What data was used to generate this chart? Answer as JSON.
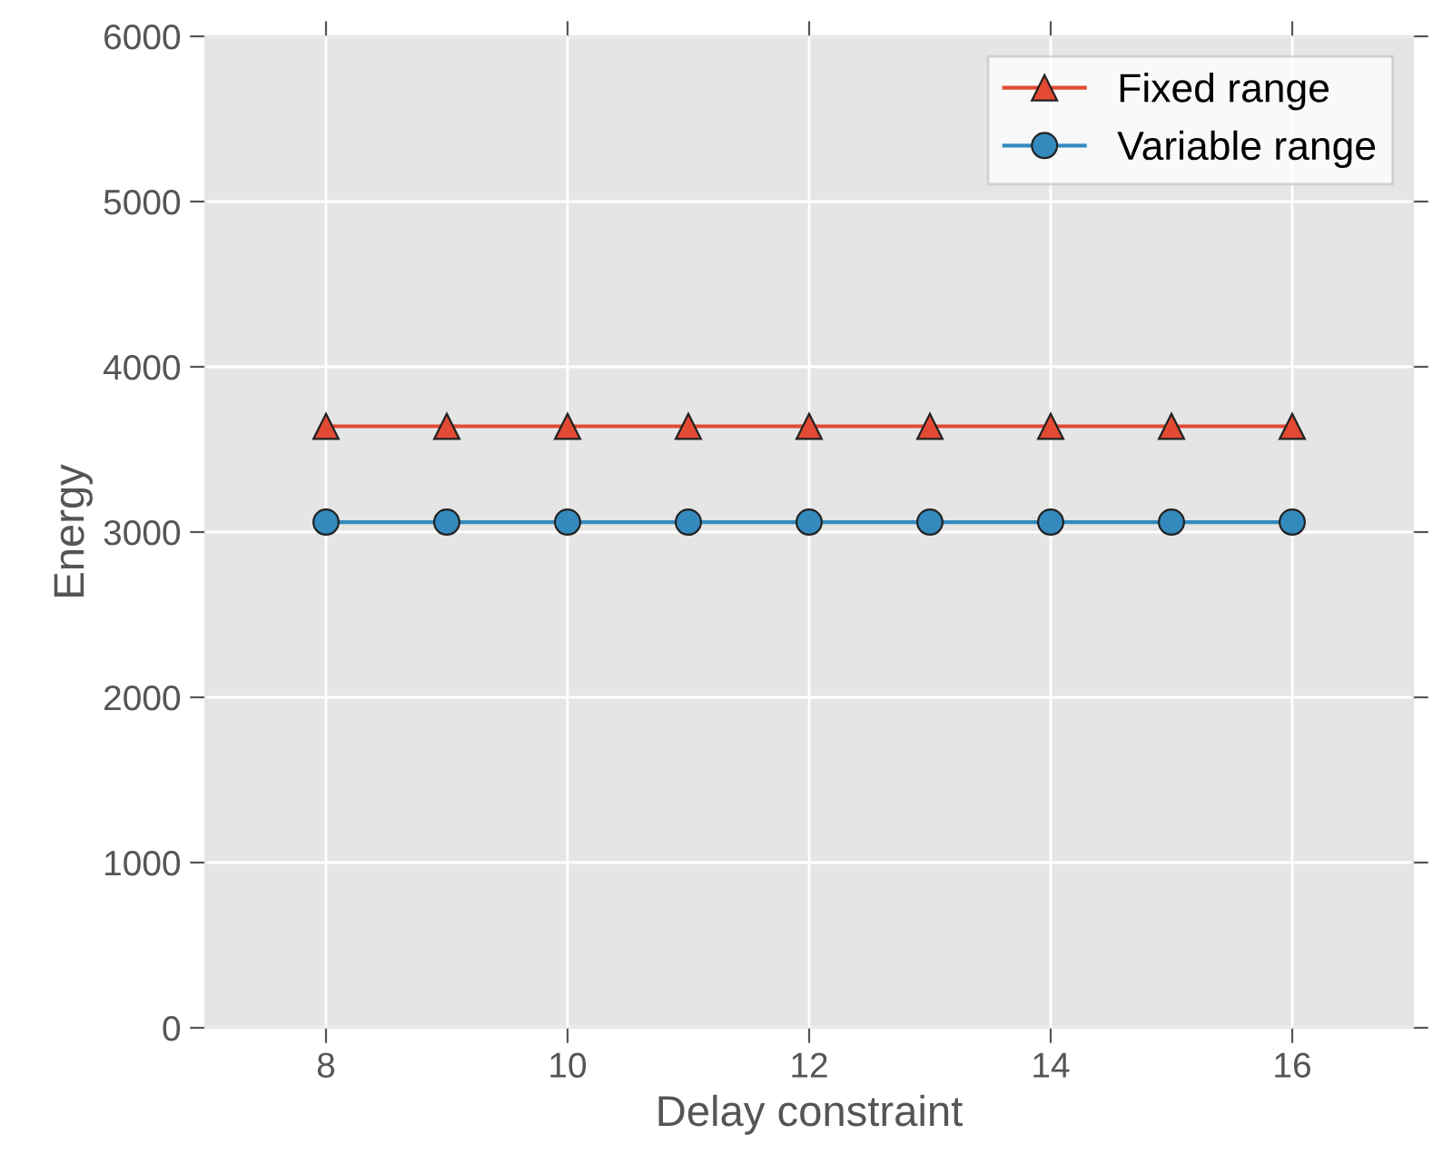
{
  "chart_data": {
    "type": "line",
    "xlabel": "Delay constraint",
    "ylabel": "Energy",
    "x": [
      8,
      9,
      10,
      11,
      12,
      13,
      14,
      15,
      16
    ],
    "series": [
      {
        "name": "Fixed range",
        "color": "#e24a33",
        "marker": "triangle",
        "values": [
          3640,
          3640,
          3640,
          3640,
          3640,
          3640,
          3640,
          3640,
          3640
        ]
      },
      {
        "name": "Variable range",
        "color": "#348abd",
        "marker": "circle",
        "values": [
          3060,
          3060,
          3060,
          3060,
          3060,
          3060,
          3060,
          3060,
          3060
        ]
      }
    ],
    "xlim": [
      7,
      17
    ],
    "xticks": [
      8,
      10,
      12,
      14,
      16
    ],
    "ylim": [
      0,
      6000
    ],
    "yticks": [
      0,
      1000,
      2000,
      3000,
      4000,
      5000,
      6000
    ],
    "grid": true,
    "legend": "top right",
    "line_style": "solid"
  }
}
